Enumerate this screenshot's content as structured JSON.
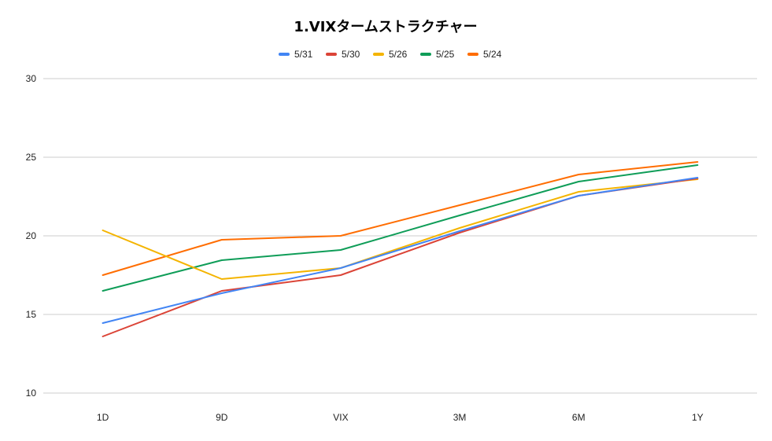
{
  "chart_data": {
    "type": "line",
    "title": "1.VIXタームストラクチャー",
    "xlabel": "",
    "ylabel": "",
    "categories": [
      "1D",
      "9D",
      "VIX",
      "3M",
      "6M",
      "1Y"
    ],
    "ylim": [
      10,
      30
    ],
    "yticks": [
      10,
      15,
      20,
      25,
      30
    ],
    "grid": true,
    "legend_position": "top",
    "series": [
      {
        "name": "5/31",
        "color": "#4285f4",
        "values": [
          14.45,
          16.35,
          17.95,
          20.3,
          22.55,
          23.7
        ]
      },
      {
        "name": "5/30",
        "color": "#db4437",
        "values": [
          13.6,
          16.5,
          17.5,
          20.2,
          22.55,
          23.65
        ]
      },
      {
        "name": "5/26",
        "color": "#f4b400",
        "values": [
          20.35,
          17.25,
          17.95,
          20.5,
          22.8,
          23.6
        ]
      },
      {
        "name": "5/25",
        "color": "#0f9d58",
        "values": [
          16.5,
          18.45,
          19.1,
          21.3,
          23.45,
          24.5
        ]
      },
      {
        "name": "5/24",
        "color": "#ff6d01",
        "values": [
          17.5,
          19.75,
          20.0,
          21.95,
          23.9,
          24.7
        ]
      }
    ]
  }
}
